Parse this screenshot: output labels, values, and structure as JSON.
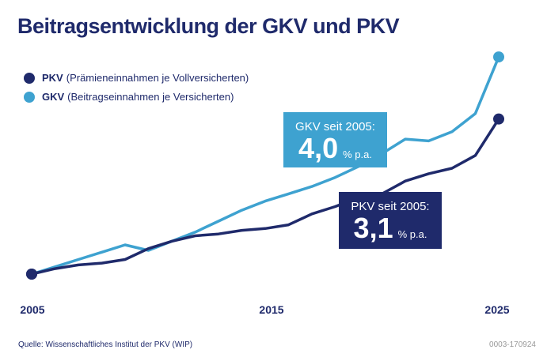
{
  "title": "Beitragsentwicklung der GKV und PKV",
  "legend": [
    {
      "key": "PKV",
      "desc": "(Prämieneinnahmen je Vollversicherten)",
      "color": "#1f2a6b"
    },
    {
      "key": "GKV",
      "desc": "(Beitragseinnahmen je Versicherten)",
      "color": "#3ea2d0"
    }
  ],
  "boxes": {
    "gkv": {
      "label": "GKV seit 2005:",
      "value": "4,0",
      "unit": "% p.a.",
      "color": "#3ea2d0"
    },
    "pkv": {
      "label": "PKV seit 2005:",
      "value": "3,1",
      "unit": "% p.a.",
      "color": "#1f2a6b"
    }
  },
  "source": "Quelle: Wissenschaftliches Institut der PKV (WIP)",
  "code": "0003-170924",
  "chart_data": {
    "type": "line",
    "title": "Beitragsentwicklung der GKV und PKV",
    "x": [
      2005,
      2006,
      2007,
      2008,
      2009,
      2010,
      2011,
      2012,
      2013,
      2014,
      2015,
      2016,
      2017,
      2018,
      2019,
      2020,
      2021,
      2022,
      2023,
      2024,
      2025
    ],
    "xticks": [
      "2005",
      "2015",
      "2025"
    ],
    "y_axis_shown": false,
    "grid": false,
    "legend_placement": "top-left",
    "series": [
      {
        "name": "GKV",
        "color": "#3ea2d0",
        "values": [
          100,
          104,
          108,
          112,
          116,
          113,
          118,
          123,
          129,
          135,
          140,
          144,
          148,
          153,
          159,
          166,
          174,
          173,
          178,
          188,
          219
        ]
      },
      {
        "name": "PKV",
        "color": "#1f2a6b",
        "values": [
          100,
          103,
          105,
          106,
          108,
          114,
          118,
          121,
          122,
          124,
          125,
          127,
          133,
          137,
          142,
          144,
          151,
          155,
          158,
          165,
          185
        ]
      }
    ]
  }
}
